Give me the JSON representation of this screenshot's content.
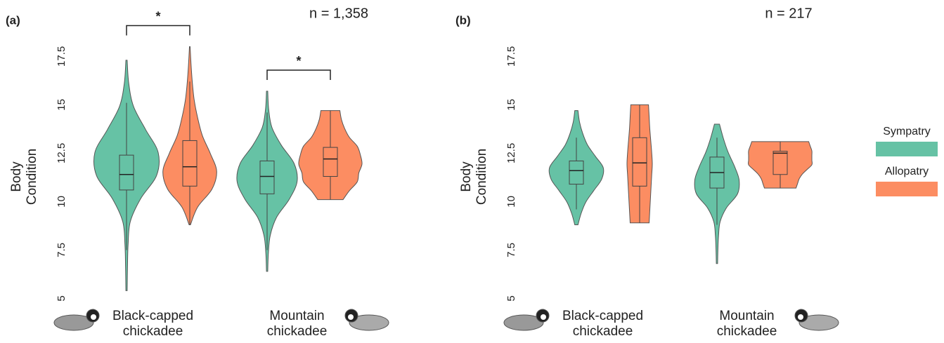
{
  "chart_data": [
    {
      "type": "violin",
      "panel": "(a)",
      "annotation": "n = 1,358",
      "ylabel": "Body Condition",
      "categories": [
        "Black-capped chickadee",
        "Mountain chickadee"
      ],
      "ylim": [
        4.8,
        18.2
      ],
      "yticks": [
        5,
        7.5,
        10,
        12.5,
        15,
        17.5
      ],
      "series": [
        {
          "name": "Sympatry",
          "color": "#66c2a5",
          "values": [
            {
              "box": [
                7.5,
                10.6,
                11.4,
                12.4,
                15.1
              ],
              "range": [
                5.4,
                17.3
              ],
              "density": [
                0.02,
                0.03,
                0.05,
                0.12,
                0.45,
                0.95,
                1.0,
                0.6,
                0.22,
                0.07,
                0.02
              ]
            },
            {
              "box": [
                7.5,
                10.4,
                11.3,
                12.1,
                14.6
              ],
              "range": [
                6.4,
                15.7
              ],
              "density": [
                0.02,
                0.04,
                0.1,
                0.3,
                0.7,
                0.95,
                0.85,
                0.45,
                0.15,
                0.05,
                0.02
              ]
            }
          ]
        },
        {
          "name": "Allopatry",
          "color": "#fc8d62",
          "values": [
            {
              "box": [
                8.8,
                10.8,
                11.8,
                13.15,
                16.2
              ],
              "range": [
                8.8,
                18.0
              ],
              "density": [
                0.02,
                0.25,
                0.7,
                0.85,
                0.65,
                0.4,
                0.25,
                0.14,
                0.08,
                0.04,
                0.01
              ]
            },
            {
              "box": [
                10.1,
                11.3,
                12.2,
                12.8,
                14.7
              ],
              "range": [
                10.1,
                14.7
              ],
              "density": [
                0.4,
                0.6,
                0.85,
                0.9,
                1.0,
                0.95,
                0.85,
                0.6,
                0.45,
                0.35,
                0.3
              ]
            }
          ]
        }
      ],
      "brackets": [
        {
          "label": "*",
          "category": 0
        },
        {
          "label": "*",
          "category": 1
        }
      ]
    },
    {
      "type": "violin",
      "panel": "(b)",
      "annotation": "n = 217",
      "ylabel": "Body Condition",
      "categories": [
        "Black-capped chickadee",
        "Mountain chickadee"
      ],
      "ylim": [
        4.8,
        18.2
      ],
      "yticks": [
        5,
        7.5,
        10,
        12.5,
        15,
        17.5
      ],
      "series": [
        {
          "name": "Sympatry",
          "color": "#66c2a5",
          "values": [
            {
              "box": [
                9.6,
                10.9,
                11.6,
                12.1,
                13.3
              ],
              "range": [
                8.8,
                14.7
              ],
              "density": [
                0.05,
                0.15,
                0.3,
                0.55,
                0.8,
                0.85,
                0.6,
                0.35,
                0.2,
                0.1,
                0.05
              ]
            },
            {
              "box": [
                8.8,
                10.7,
                11.5,
                12.3,
                13.3
              ],
              "range": [
                6.8,
                14.0
              ],
              "density": [
                0.02,
                0.03,
                0.05,
                0.1,
                0.3,
                0.65,
                0.7,
                0.55,
                0.35,
                0.2,
                0.08
              ]
            }
          ]
        },
        {
          "name": "Allopatry",
          "color": "#fc8d62",
          "values": [
            {
              "box": [
                8.9,
                10.8,
                12.0,
                13.3,
                15.0
              ],
              "range": [
                8.9,
                15.0
              ],
              "density": [
                0.3,
                0.32,
                0.34,
                0.36,
                0.38,
                0.4,
                0.38,
                0.35,
                0.32,
                0.3,
                0.28
              ]
            },
            {
              "box": [
                10.7,
                11.4,
                12.5,
                12.6,
                13.1
              ],
              "range": [
                10.7,
                13.1
              ],
              "density": [
                0.5,
                0.55,
                0.6,
                0.7,
                0.85,
                1.0,
                1.0,
                1.0,
                1.0,
                0.95,
                0.9
              ]
            }
          ]
        }
      ],
      "brackets": []
    }
  ]
}
